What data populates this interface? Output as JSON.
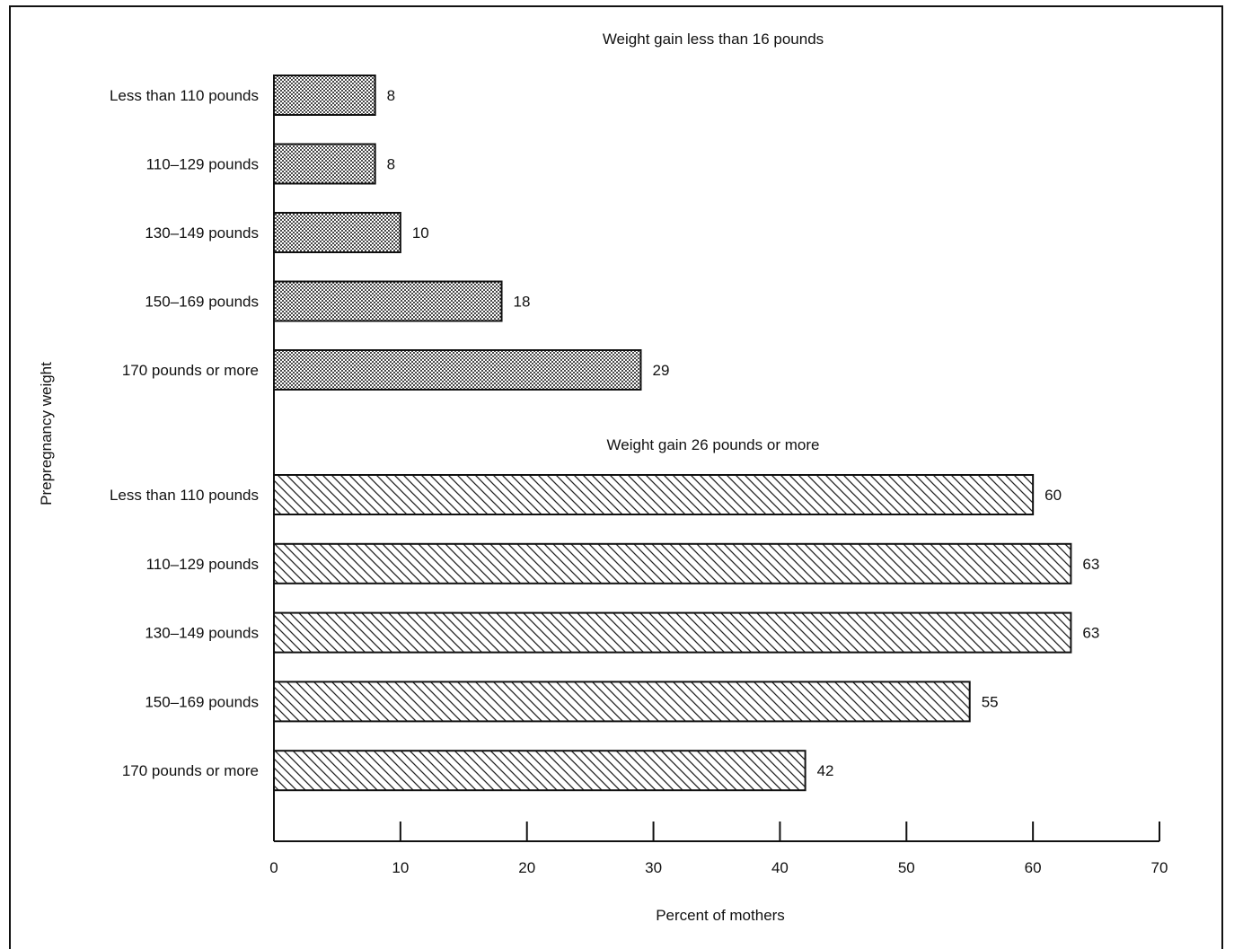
{
  "chart_data": {
    "type": "bar",
    "orientation": "horizontal",
    "ylabel": "Prepregnancy weight",
    "xlabel": "Percent of mothers",
    "xlim": [
      0,
      70
    ],
    "xticks": [
      0,
      10,
      20,
      30,
      40,
      50,
      60,
      70
    ],
    "grid": false,
    "categories": [
      "Less than 110 pounds",
      "110–129 pounds",
      "130–149 pounds",
      "150–169 pounds",
      "170 pounds or more"
    ],
    "series": [
      {
        "name": "Weight gain less than 16 pounds",
        "values": [
          8,
          8,
          10,
          18,
          29
        ],
        "pattern": "dots"
      },
      {
        "name": "Weight gain 26 pounds or more",
        "values": [
          60,
          63,
          63,
          55,
          42
        ],
        "pattern": "hatch"
      }
    ]
  }
}
